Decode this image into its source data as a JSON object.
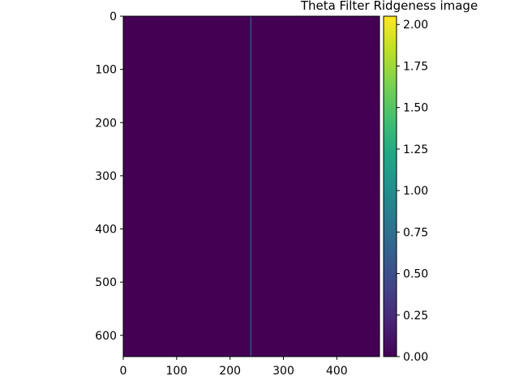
{
  "chart_data": {
    "type": "heatmap",
    "title": "Theta Filter Ridgeness image",
    "xlabel": "",
    "ylabel": "",
    "colormap": "viridis",
    "xlim": [
      0,
      480
    ],
    "ylim": [
      640,
      0
    ],
    "x_ticks": [
      "0",
      "100",
      "200",
      "300",
      "400"
    ],
    "y_ticks": [
      "0",
      "100",
      "200",
      "300",
      "400",
      "500",
      "600"
    ],
    "background_value": 0.0,
    "ridge_lines": [
      {
        "orientation": "vertical",
        "x": 239,
        "value": 0.6
      }
    ],
    "colorbar": {
      "min": 0.0,
      "max": 2.05,
      "ticks": [
        "0.00",
        "0.25",
        "0.50",
        "0.75",
        "1.00",
        "1.25",
        "1.50",
        "1.75",
        "2.00"
      ]
    }
  },
  "colors": {
    "background": "#440154",
    "axis": "#000000"
  }
}
